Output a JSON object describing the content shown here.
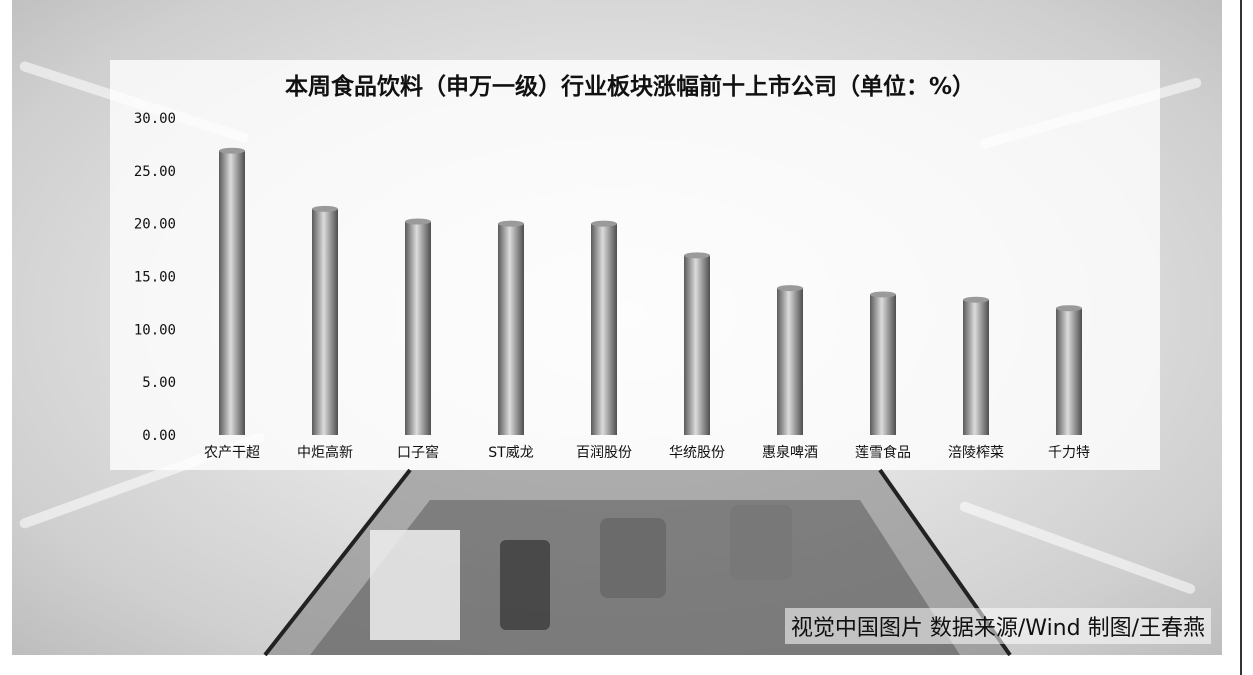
{
  "caption": "视觉中国图片 数据来源/Wind 制图/王春燕",
  "chart_data": {
    "type": "bar",
    "title": "本周食品饮料（申万一级）行业板块涨幅前十上市公司（单位：%）",
    "categories": [
      "农产干超",
      "中炬高新",
      "口子窖",
      "ST威龙",
      "百润股份",
      "华统股份",
      "惠泉啤酒",
      "莲雪食品",
      "涪陵榨菜",
      "千力特"
    ],
    "values": [
      26.9,
      21.4,
      20.2,
      20.0,
      20.0,
      17.0,
      13.9,
      13.3,
      12.8,
      12.0
    ],
    "ylim": [
      0,
      30
    ],
    "yticks": [
      "0.00",
      "5.00",
      "10.00",
      "15.00",
      "20.00",
      "25.00",
      "30.00"
    ],
    "grid": false,
    "colors": {
      "bar_light": "#d8d8d8",
      "bar_dark": "#5a5a5a",
      "text": "#111111"
    }
  }
}
